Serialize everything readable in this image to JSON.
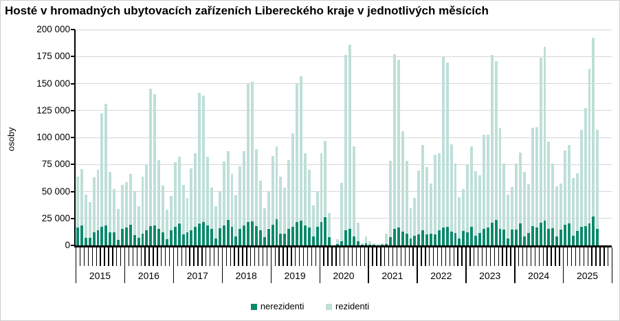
{
  "chart_data": {
    "type": "bar",
    "stacked": true,
    "title": "Hosté v hromadných ubytovacích zařízeních Libereckého kraje v jednotlivých měsících",
    "ylabel": "osoby",
    "ylim": [
      0,
      200000
    ],
    "ytick_step": 25000,
    "ytick_labels_top_down": [
      "200 000",
      "175 000",
      "150 000",
      "125 000",
      "100 000",
      "75 000",
      "50 000",
      "25 000",
      "0"
    ],
    "grid": "horizontal",
    "legend": [
      "nerezidenti",
      "rezidenti"
    ],
    "legend_position": "bottom",
    "colors": {
      "nerezidenti": "#0b8a6b",
      "rezidenti": "#bedfd8",
      "gridline": "#d6d6d6",
      "axis": "#000000"
    },
    "x_categories_years": [
      "2015",
      "2016",
      "2017",
      "2018",
      "2019",
      "2020",
      "2021",
      "2022",
      "2023",
      "2024",
      "2025"
    ],
    "months_per_year": 12,
    "years": [
      {
        "year": "2015",
        "nerezidenti": [
          16700,
          18600,
          7300,
          6800,
          12400,
          13900,
          17500,
          18600,
          11800,
          11800,
          5300,
          15600
        ],
        "rezidenti": [
          47300,
          52400,
          39700,
          33200,
          50600,
          56100,
          104500,
          112400,
          56200,
          40200,
          28700,
          40400
        ]
      },
      {
        "year": "2016",
        "nerezidenti": [
          16700,
          19200,
          9600,
          6800,
          10700,
          14300,
          18000,
          18600,
          15000,
          12400,
          6000,
          14300
        ],
        "rezidenti": [
          41800,
          46800,
          40400,
          29800,
          53300,
          60700,
          127000,
          121400,
          64000,
          42900,
          27100,
          31700
        ]
      },
      {
        "year": "2017",
        "nerezidenti": [
          17500,
          20700,
          10000,
          12400,
          14300,
          17100,
          20700,
          21800,
          18600,
          15400,
          6400,
          16000
        ],
        "rezidenti": [
          59500,
          61600,
          45800,
          31600,
          57000,
          68400,
          120400,
          116900,
          63300,
          37800,
          29600,
          34600
        ]
      },
      {
        "year": "2018",
        "nerezidenti": [
          18600,
          23500,
          17500,
          8500,
          15400,
          18600,
          21800,
          22500,
          18000,
          14300,
          7900,
          15600
        ],
        "rezidenti": [
          59100,
          63700,
          48900,
          37700,
          58000,
          68600,
          127600,
          129000,
          70900,
          45700,
          26700,
          35000
        ]
      },
      {
        "year": "2019",
        "nerezidenti": [
          19200,
          23900,
          10700,
          11100,
          15400,
          17100,
          21800,
          23100,
          18200,
          16700,
          8500,
          17100
        ],
        "rezidenti": [
          63800,
          67600,
          53100,
          42100,
          63300,
          86500,
          127600,
          133300,
          67300,
          53500,
          28500,
          33500
        ]
      },
      {
        "year": "2020",
        "nerezidenti": [
          21800,
          26100,
          7900,
          200,
          1100,
          3600,
          13900,
          15400,
          8200,
          3800,
          400,
          1800
        ],
        "rezidenti": [
          63700,
          70700,
          22100,
          100,
          4900,
          54300,
          162300,
          170800,
          83700,
          17100,
          1300,
          6300
        ]
      },
      {
        "year": "2021",
        "nerezidenti": [
          900,
          400,
          300,
          500,
          1300,
          7800,
          15000,
          16600,
          12900,
          11100,
          6200,
          8900
        ],
        "rezidenti": [
          2900,
          1400,
          1000,
          1300,
          9800,
          70300,
          162000,
          155100,
          93100,
          67000,
          28300,
          35100
        ]
      },
      {
        "year": "2022",
        "nerezidenti": [
          10300,
          13900,
          10000,
          11100,
          10200,
          14300,
          16400,
          17400,
          12800,
          11700,
          6400,
          13200
        ],
        "rezidenti": [
          58900,
          79100,
          62300,
          46300,
          73900,
          71200,
          158100,
          151800,
          80800,
          64300,
          38300,
          38900
        ]
      },
      {
        "year": "2023",
        "nerezidenti": [
          12100,
          17400,
          9100,
          11700,
          15500,
          16400,
          21300,
          23800,
          15500,
          14500,
          6400,
          14500
        ],
        "rezidenti": [
          62400,
          74500,
          59400,
          53200,
          87100,
          86200,
          154900,
          146900,
          93500,
          61500,
          40800,
          39800
        ]
      },
      {
        "year": "2024",
        "nerezidenti": [
          14900,
          20200,
          8500,
          11700,
          18100,
          16600,
          21300,
          22800,
          15500,
          16000,
          8500,
          14500
        ],
        "rezidenti": [
          60600,
          66000,
          59600,
          45300,
          90900,
          93000,
          152700,
          161200,
          80700,
          59500,
          46400,
          42900
        ]
      },
      {
        "year": "2025",
        "nerezidenti": [
          19100,
          20600,
          9100,
          13200,
          17000,
          18100,
          20600,
          26600,
          15500
        ],
        "rezidenti": [
          69000,
          72400,
          53500,
          53600,
          90300,
          109600,
          143300,
          165800,
          91800
        ]
      }
    ]
  }
}
